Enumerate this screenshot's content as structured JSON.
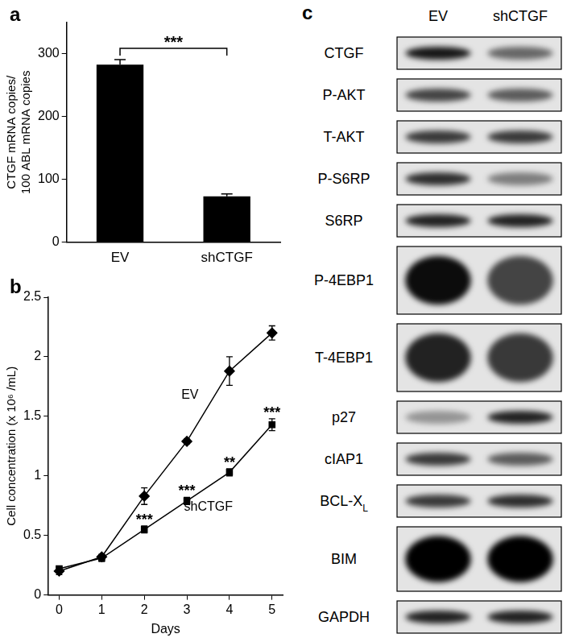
{
  "chart_data": [
    {
      "panel": "a",
      "type": "bar",
      "categories": [
        "EV",
        "shCTGF"
      ],
      "values": [
        283,
        73
      ],
      "errors": [
        8,
        4
      ],
      "color": "#000000",
      "y_label": [
        "CTGF mRNA copies/",
        "100 ABL mRNA copies"
      ],
      "ylim": [
        0,
        350
      ],
      "yticks": [
        0,
        100,
        200,
        300
      ],
      "grid": false,
      "significance": "***"
    },
    {
      "panel": "b",
      "type": "line",
      "x": [
        0,
        1,
        2,
        3,
        4,
        5
      ],
      "x_label": "Days",
      "y_label": "Cell concentration (x 10⁶ /mL)",
      "xlim": [
        -0.25,
        5.25
      ],
      "xticks": [
        0,
        1,
        2,
        3,
        4,
        5
      ],
      "ylim": [
        0,
        2.5
      ],
      "yticks": [
        0,
        0.5,
        1,
        1.5,
        2,
        2.5
      ],
      "grid": false,
      "series": [
        {
          "name": "EV",
          "color": "#000000",
          "marker": "diamond",
          "values": [
            0.2,
            0.32,
            0.83,
            1.29,
            1.88,
            2.2
          ],
          "errors": [
            0.03,
            0.02,
            0.07,
            0.02,
            0.12,
            0.06
          ]
        },
        {
          "name": "shCTGF",
          "color": "#000000",
          "marker": "square",
          "values": [
            0.22,
            0.31,
            0.55,
            0.79,
            1.03,
            1.43
          ],
          "errors": [
            0.02,
            0.03,
            0.03,
            0.03,
            0.03,
            0.05
          ],
          "significance": [
            null,
            null,
            "***",
            "***",
            "**",
            "***"
          ]
        }
      ]
    }
  ],
  "blot": {
    "panel": "c",
    "columns": [
      "EV",
      "shCTGF"
    ],
    "rows": [
      {
        "label": "CTGF",
        "intensity": [
          0.9,
          0.55
        ]
      },
      {
        "label": "P-AKT",
        "intensity": [
          0.7,
          0.6
        ]
      },
      {
        "label": "T-AKT",
        "intensity": [
          0.75,
          0.75
        ]
      },
      {
        "label": "P-S6RP",
        "intensity": [
          0.8,
          0.45
        ]
      },
      {
        "label": "S6RP",
        "intensity": [
          0.85,
          0.85
        ]
      },
      {
        "label": "P-4EBP1",
        "intensity": [
          0.95,
          0.7
        ]
      },
      {
        "label": "T-4EBP1",
        "intensity": [
          0.85,
          0.75
        ]
      },
      {
        "label": "p27",
        "intensity": [
          0.35,
          0.85
        ]
      },
      {
        "label": "cIAP1",
        "intensity": [
          0.75,
          0.6
        ]
      },
      {
        "label": "BCL-X",
        "subscript": "L",
        "intensity": [
          0.75,
          0.8
        ]
      },
      {
        "label": "BIM",
        "intensity": [
          1,
          1
        ]
      },
      {
        "label": "GAPDH",
        "intensity": [
          0.85,
          0.85
        ]
      }
    ]
  }
}
